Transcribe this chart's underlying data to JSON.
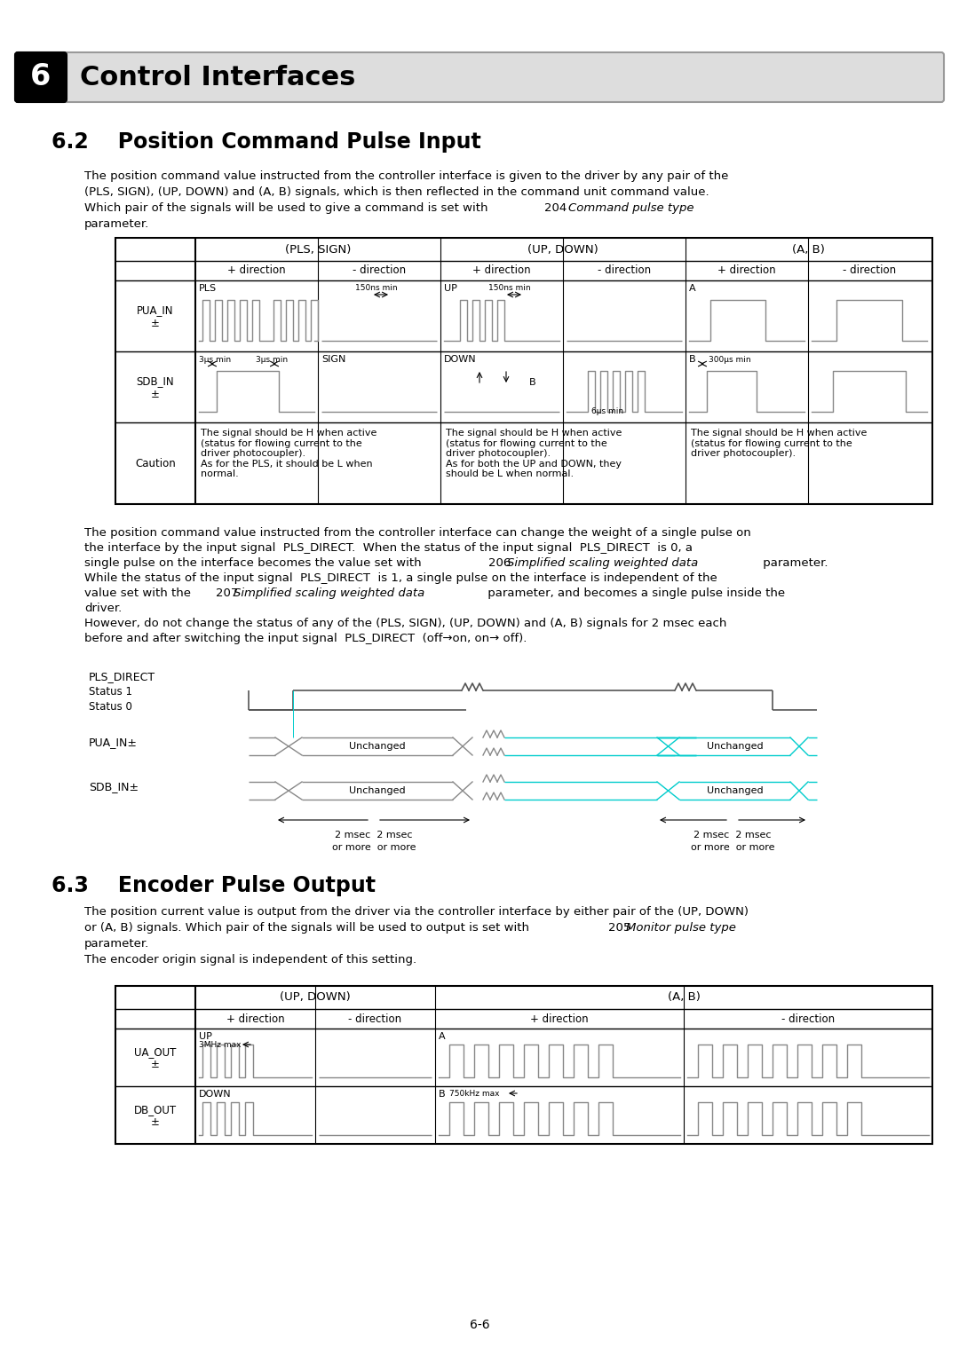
{
  "page_bg": "#ffffff",
  "header_number": "6",
  "header_title": "Control Interfaces",
  "section_62_title": "6.2    Position Command Pulse Input",
  "section_63_title": "6.3    Encoder Pulse Output",
  "caution_pls_sign": "The signal should be H when active\n(status for flowing current to the\ndriver photocoupler).\nAs for the PLS, it should be L when\nnormal.",
  "caution_up_down": "The signal should be H when active\n(status for flowing current to the\ndriver photocoupler).\nAs for both the UP and DOWN, they\nshould be L when normal.",
  "caution_ab": "The signal should be H when active\n(status for flowing current to the\ndriver photocoupler).",
  "page_number": "6-6",
  "waveform_color": "#888888",
  "cyan_color": "#00cccc"
}
